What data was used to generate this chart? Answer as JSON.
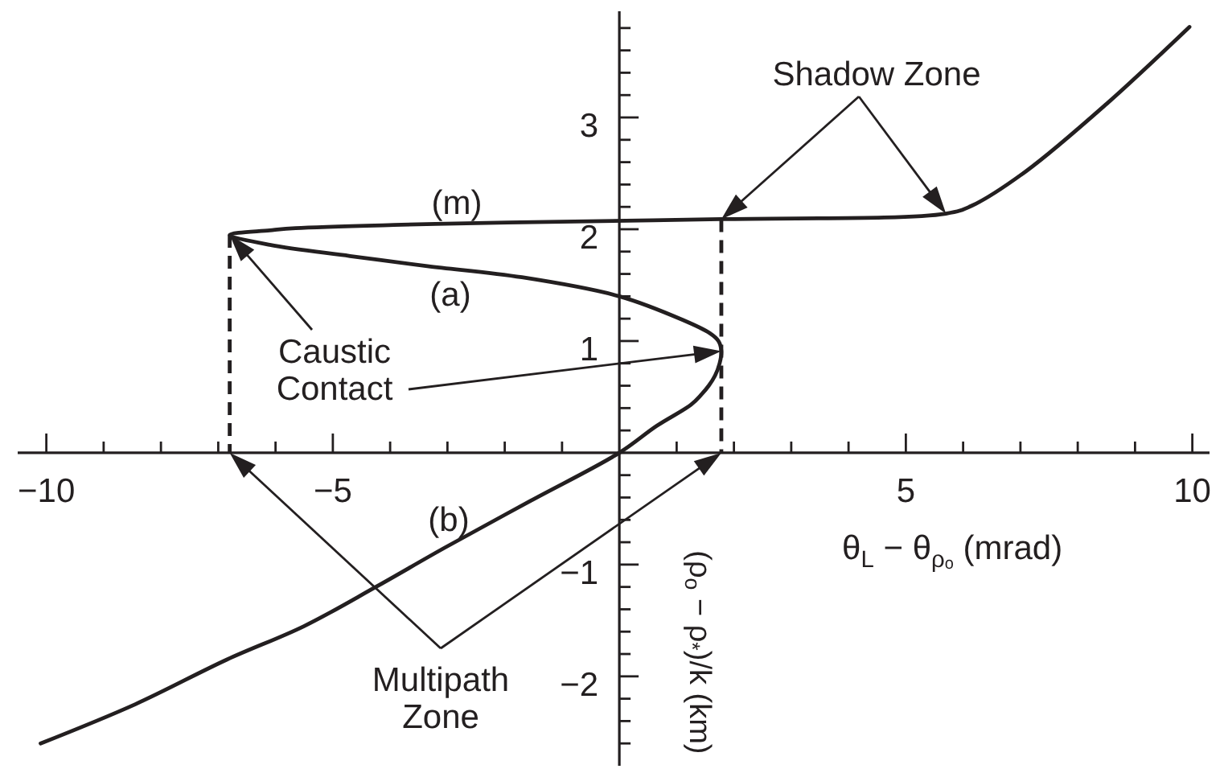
{
  "chart_data": {
    "type": "line",
    "line_style": "solid",
    "xlabel": "θ$_{L}$ − θ$_{ρₒ}$ (mrad)",
    "ylabel": "(ρ$_{o}$ − ρ$_{*}$)/k (km)",
    "xlim": [
      -10.5,
      10.3
    ],
    "ylim": [
      -2.8,
      3.95
    ],
    "xticks": [
      {
        "value": -10,
        "label": "−10"
      },
      {
        "value": -9,
        "label": null
      },
      {
        "value": -8,
        "label": null
      },
      {
        "value": -7,
        "label": null
      },
      {
        "value": -6,
        "label": null
      },
      {
        "value": -5,
        "label": "−5"
      },
      {
        "value": -4,
        "label": null
      },
      {
        "value": -3,
        "label": null
      },
      {
        "value": -2,
        "label": null
      },
      {
        "value": -1,
        "label": null
      },
      {
        "value": 1,
        "label": null
      },
      {
        "value": 2,
        "label": null
      },
      {
        "value": 3,
        "label": null
      },
      {
        "value": 4,
        "label": null
      },
      5,
      {
        "value": 6,
        "label": null
      },
      {
        "value": 7,
        "label": null
      },
      {
        "value": 8,
        "label": null
      },
      {
        "value": 9,
        "label": null
      },
      10
    ],
    "yticks": [
      {
        "value": -2.6,
        "label": null
      },
      {
        "value": -2.4,
        "label": null
      },
      {
        "value": -2.2,
        "label": null
      },
      {
        "value": -2,
        "label": "−2"
      },
      {
        "value": -1.8,
        "label": null
      },
      {
        "value": -1.6,
        "label": null
      },
      {
        "value": -1.4,
        "label": null
      },
      {
        "value": -1.2,
        "label": null
      },
      {
        "value": -1,
        "label": "−1"
      },
      {
        "value": -0.8,
        "label": null
      },
      {
        "value": -0.6,
        "label": null
      },
      {
        "value": -0.4,
        "label": null
      },
      {
        "value": -0.2,
        "label": null
      },
      {
        "value": 0.2,
        "label": null
      },
      {
        "value": 0.4,
        "label": null
      },
      {
        "value": 0.6,
        "label": null
      },
      {
        "value": 0.8,
        "label": null
      },
      1,
      {
        "value": 1.2,
        "label": null
      },
      {
        "value": 1.4,
        "label": null
      },
      {
        "value": 1.6,
        "label": null
      },
      {
        "value": 1.8,
        "label": null
      },
      2,
      {
        "value": 2.2,
        "label": null
      },
      {
        "value": 2.4,
        "label": null
      },
      {
        "value": 2.6,
        "label": null
      },
      {
        "value": 2.8,
        "label": null
      },
      3,
      {
        "value": 3.2,
        "label": null
      },
      {
        "value": 3.4,
        "label": null
      },
      {
        "value": 3.6,
        "label": null
      },
      {
        "value": 3.8,
        "label": null
      }
    ],
    "series": [
      {
        "color": "#231f20",
        "x": [
          -10.1,
          -8.45,
          -6.85,
          -5.5,
          -4.25,
          -3.05,
          -1.55,
          0,
          0.65,
          1.25,
          1.43,
          1.56,
          1.67,
          1.75,
          1.78,
          1.73,
          1.58,
          1.1,
          0,
          -1.7,
          -3.35,
          -4.7,
          -6.1,
          -6.8,
          -6.1,
          -5.65,
          -3.8,
          -1.95,
          1.78,
          5.7,
          6.15,
          7.1,
          8.5,
          9.95
        ],
        "values": [
          -2.6,
          -2.25,
          -1.85,
          -1.55,
          -1.2,
          -0.85,
          -0.43,
          0,
          0.24,
          0.43,
          0.52,
          0.6,
          0.69,
          0.8,
          0.91,
          1.0,
          1.07,
          1.19,
          1.4,
          1.57,
          1.67,
          1.76,
          1.86,
          1.95,
          1.99,
          2.01,
          2.04,
          2.06,
          2.09,
          2.14,
          2.21,
          2.52,
          3.12,
          3.81
        ]
      },
      {
        "color": "#231f20",
        "line_style": "dashed",
        "x": [
          -6.8,
          -6.8
        ],
        "values": [
          1.95,
          0
        ]
      },
      {
        "color": "#231f20",
        "line_style": "dashed",
        "x": [
          1.78,
          1.78
        ],
        "values": [
          2.09,
          0
        ]
      }
    ],
    "annotations": [
      "(m)",
      "(a)",
      "(b)",
      "Caustic\nContact",
      "Shadow Zone",
      "Multipath\nZone"
    ]
  }
}
